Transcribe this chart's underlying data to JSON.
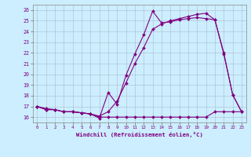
{
  "xlabel": "Windchill (Refroidissement éolien,°C)",
  "color": "#800080",
  "bg_color": "#cceeff",
  "xlim": [
    -0.5,
    23.5
  ],
  "ylim": [
    15.5,
    26.5
  ],
  "yticks": [
    16,
    17,
    18,
    19,
    20,
    21,
    22,
    23,
    24,
    25,
    26
  ],
  "xticks": [
    0,
    1,
    2,
    3,
    4,
    5,
    6,
    7,
    8,
    9,
    10,
    11,
    12,
    13,
    14,
    15,
    16,
    17,
    18,
    19,
    20,
    21,
    22,
    23
  ],
  "line1_x": [
    0,
    1,
    2,
    3,
    4,
    5,
    6,
    7,
    8,
    9,
    10,
    11,
    12,
    13,
    14,
    15,
    16,
    17,
    18,
    19,
    20,
    21,
    22,
    23
  ],
  "line1_y": [
    17.0,
    16.7,
    16.7,
    16.5,
    16.5,
    16.4,
    16.3,
    15.9,
    18.3,
    17.2,
    19.9,
    21.9,
    23.7,
    25.9,
    24.8,
    24.9,
    25.1,
    25.2,
    25.3,
    25.2,
    25.1,
    21.9,
    18.1,
    16.5
  ],
  "line2_x": [
    0,
    1,
    2,
    3,
    4,
    5,
    6,
    7,
    8,
    9,
    10,
    11,
    12,
    13,
    14,
    15,
    16,
    17,
    18,
    19,
    20,
    21,
    22,
    23
  ],
  "line2_y": [
    17.0,
    16.8,
    16.7,
    16.5,
    16.5,
    16.4,
    16.3,
    16.1,
    16.5,
    17.5,
    19.2,
    21.0,
    22.5,
    24.2,
    24.7,
    25.0,
    25.2,
    25.4,
    25.6,
    25.7,
    25.1,
    22.0,
    18.1,
    16.5
  ],
  "line3_x": [
    0,
    1,
    2,
    3,
    4,
    5,
    6,
    7,
    8,
    9,
    10,
    11,
    12,
    13,
    14,
    15,
    16,
    17,
    18,
    19,
    20,
    21,
    22,
    23
  ],
  "line3_y": [
    17.0,
    16.7,
    16.7,
    16.5,
    16.5,
    16.4,
    16.3,
    16.0,
    16.0,
    16.0,
    16.0,
    16.0,
    16.0,
    16.0,
    16.0,
    16.0,
    16.0,
    16.0,
    16.0,
    16.0,
    16.5,
    16.5,
    16.5,
    16.5
  ]
}
